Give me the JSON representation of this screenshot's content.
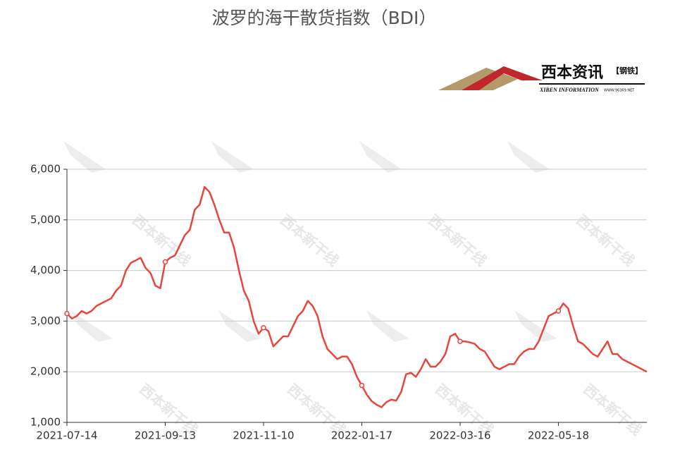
{
  "chart_data": {
    "type": "line",
    "title": "波罗的海干散货指数（BDI）",
    "logo": {
      "name": "西本资讯",
      "tag": "【钢铁】",
      "english": "XIBEN INFORMATION",
      "url": "WWW.96369.NET"
    },
    "watermark": "西本新干线",
    "categories": [
      "2021-07-14",
      null,
      null,
      null,
      null,
      null,
      null,
      null,
      null,
      null,
      null,
      null,
      null,
      null,
      null,
      null,
      null,
      null,
      null,
      null,
      "2021-09-13",
      null,
      null,
      null,
      null,
      null,
      null,
      null,
      null,
      null,
      null,
      null,
      null,
      null,
      null,
      null,
      null,
      null,
      null,
      null,
      "2021-11-10",
      null,
      null,
      null,
      null,
      null,
      null,
      null,
      null,
      null,
      null,
      null,
      null,
      null,
      null,
      null,
      null,
      null,
      null,
      null,
      "2022-01-17",
      null,
      null,
      null,
      null,
      null,
      null,
      null,
      null,
      null,
      null,
      null,
      null,
      null,
      null,
      null,
      null,
      null,
      null,
      null,
      "2022-03-16",
      null,
      null,
      null,
      null,
      null,
      null,
      null,
      null,
      null,
      null,
      null,
      null,
      null,
      null,
      null,
      null,
      null,
      null,
      null,
      "2022-05-18",
      null,
      null,
      null,
      null,
      null,
      null,
      null,
      null,
      null,
      null,
      null,
      null,
      null,
      null,
      null,
      null,
      null,
      null
    ],
    "series": [
      {
        "name": "BDI",
        "color": "#e8453c",
        "values": [
          3150,
          3050,
          3100,
          3200,
          3150,
          3200,
          3300,
          3350,
          3400,
          3450,
          3600,
          3700,
          4000,
          4150,
          4200,
          4250,
          4050,
          3950,
          3700,
          3650,
          4170,
          4250,
          4300,
          4500,
          4700,
          4800,
          5200,
          5300,
          5650,
          5550,
          5300,
          5000,
          4750,
          4750,
          4450,
          4000,
          3600,
          3400,
          3000,
          2750,
          2870,
          2800,
          2500,
          2600,
          2700,
          2700,
          2900,
          3100,
          3200,
          3400,
          3300,
          3100,
          2700,
          2450,
          2350,
          2250,
          2300,
          2300,
          2150,
          1900,
          1730,
          1550,
          1420,
          1350,
          1300,
          1400,
          1450,
          1430,
          1600,
          1950,
          1980,
          1900,
          2050,
          2250,
          2100,
          2100,
          2200,
          2350,
          2700,
          2750,
          2600,
          2600,
          2580,
          2550,
          2450,
          2400,
          2250,
          2100,
          2050,
          2100,
          2150,
          2150,
          2300,
          2400,
          2450,
          2450,
          2600,
          2850,
          3100,
          3150,
          3200,
          3350,
          3250,
          2900,
          2600,
          2550,
          2450,
          2350,
          2300,
          2450,
          2600,
          2350,
          2350,
          2250,
          2200,
          2150,
          2100,
          2050,
          2000
        ]
      }
    ],
    "ylim": [
      1000,
      6000
    ],
    "yticks": [
      {
        "value": 1000,
        "label": "1,000"
      },
      {
        "value": 2000,
        "label": "2,000"
      },
      {
        "value": 3000,
        "label": "3,000"
      },
      {
        "value": 4000,
        "label": "4,000"
      },
      {
        "value": 5000,
        "label": "5,000"
      },
      {
        "value": 6000,
        "label": "6,000"
      }
    ],
    "grid": true
  }
}
